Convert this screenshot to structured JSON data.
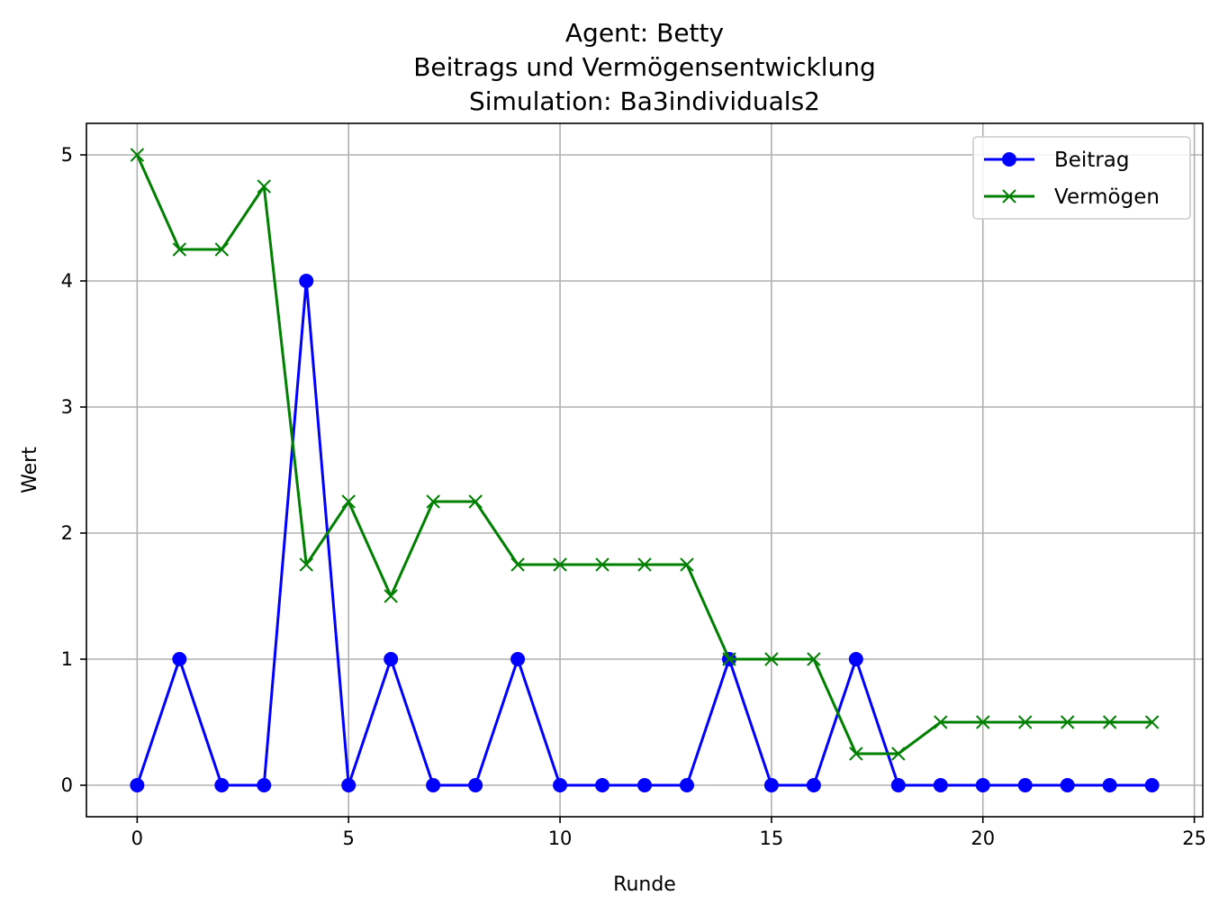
{
  "chart_data": {
    "type": "line",
    "title": [
      "Agent: Betty",
      "Beitrags und Vermögensentwicklung",
      "Simulation: Ba3individuals2"
    ],
    "xlabel": "Runde",
    "ylabel": "Wert",
    "xlim": [
      -1.2,
      25.2
    ],
    "ylim": [
      -0.25,
      5.25
    ],
    "xticks": [
      0,
      5,
      10,
      15,
      20,
      25
    ],
    "yticks": [
      0,
      1,
      2,
      3,
      4,
      5
    ],
    "grid": true,
    "legend": "top-right",
    "x": [
      0,
      1,
      2,
      3,
      4,
      5,
      6,
      7,
      8,
      9,
      10,
      11,
      12,
      13,
      14,
      15,
      16,
      17,
      18,
      19,
      20,
      21,
      22,
      23,
      24
    ],
    "series": [
      {
        "name": "Beitrag",
        "color": "#0000ff",
        "marker": "circle",
        "values": [
          0,
          1,
          0,
          0,
          4,
          0,
          1,
          0,
          0,
          1,
          0,
          0,
          0,
          0,
          1,
          0,
          0,
          1,
          0,
          0,
          0,
          0,
          0,
          0,
          0
        ]
      },
      {
        "name": "Vermögen",
        "color": "#008000",
        "marker": "x",
        "values": [
          5,
          4.25,
          4.25,
          4.75,
          1.75,
          2.25,
          1.5,
          2.25,
          2.25,
          1.75,
          1.75,
          1.75,
          1.75,
          1.75,
          1,
          1,
          1,
          0.25,
          0.25,
          0.5,
          0.5,
          0.5,
          0.5,
          0.5,
          0.5
        ]
      }
    ]
  }
}
